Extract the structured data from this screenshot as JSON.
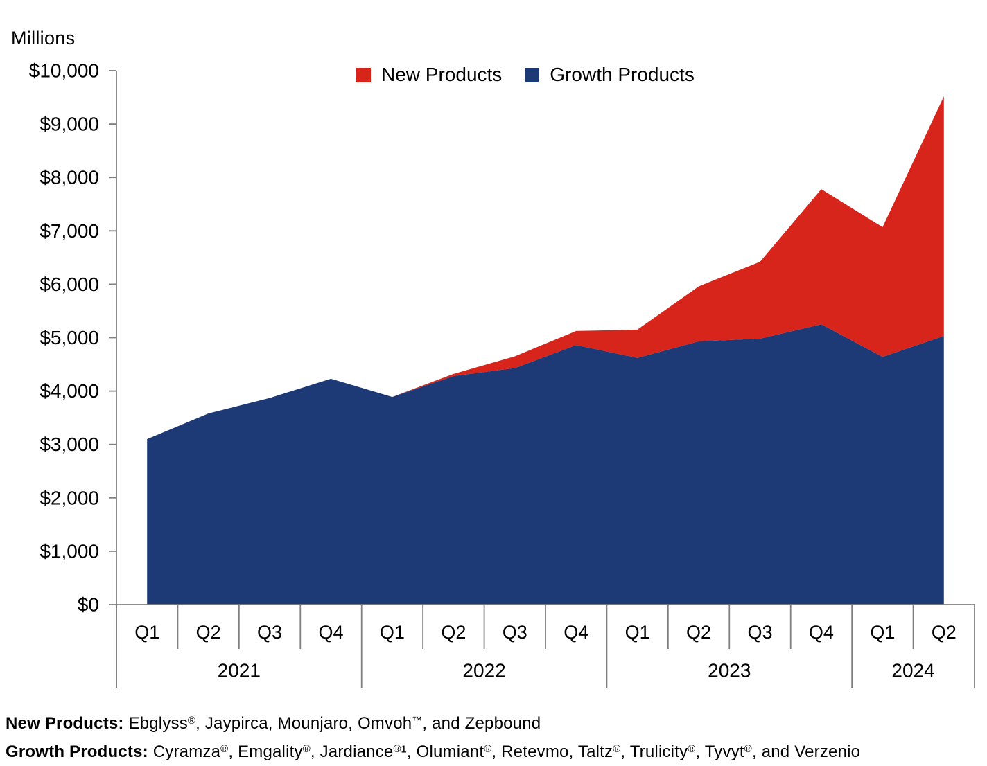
{
  "axis_unit_label": "Millions",
  "chart_data": {
    "type": "area",
    "stacked": true,
    "unit": "USD millions",
    "title": "",
    "ylabel": "Millions",
    "ylim": [
      0,
      10000
    ],
    "ytick_step": 1000,
    "ytick_labels": [
      "$0",
      "$1,000",
      "$2,000",
      "$3,000",
      "$4,000",
      "$5,000",
      "$6,000",
      "$7,000",
      "$8,000",
      "$9,000",
      "$10,000"
    ],
    "grid": false,
    "legend_position": "top-center",
    "x": [
      "Q1 2021",
      "Q2 2021",
      "Q3 2021",
      "Q4 2021",
      "Q1 2022",
      "Q2 2022",
      "Q3 2022",
      "Q4 2022",
      "Q1 2023",
      "Q2 2023",
      "Q3 2023",
      "Q4 2023",
      "Q1 2024",
      "Q2 2024"
    ],
    "x_groups": [
      {
        "year": "2021",
        "quarters": [
          "Q1",
          "Q2",
          "Q3",
          "Q4"
        ]
      },
      {
        "year": "2022",
        "quarters": [
          "Q1",
          "Q2",
          "Q3",
          "Q4"
        ]
      },
      {
        "year": "2023",
        "quarters": [
          "Q1",
          "Q2",
          "Q3",
          "Q4"
        ]
      },
      {
        "year": "2024",
        "quarters": [
          "Q1",
          "Q2"
        ]
      }
    ],
    "series": [
      {
        "name": "New Products",
        "color": "#D8251C",
        "stack_level": 2,
        "values": [
          0,
          0,
          0,
          0,
          0,
          40,
          220,
          265,
          530,
          1030,
          1440,
          2530,
          2430,
          4490
        ]
      },
      {
        "name": "Growth Products",
        "color": "#1E3A76",
        "stack_level": 1,
        "values": [
          3100,
          3580,
          3870,
          4230,
          3890,
          4280,
          4430,
          4860,
          4620,
          4930,
          4980,
          5250,
          4640,
          5030
        ]
      }
    ],
    "axis_color": "#7F7F7F",
    "text_color": "#000000"
  },
  "footnotes": [
    {
      "label": "New Products:",
      "text": " Ebglyss®, Jaypirca, Mounjaro, Omvoh™, and Zepbound"
    },
    {
      "label": "Growth Products:",
      "text": " Cyramza®, Emgality®, Jardiance®¹, Olumiant®, Retevmo, Taltz®, Trulicity®, Tyvyt®, and Verzenio"
    }
  ]
}
